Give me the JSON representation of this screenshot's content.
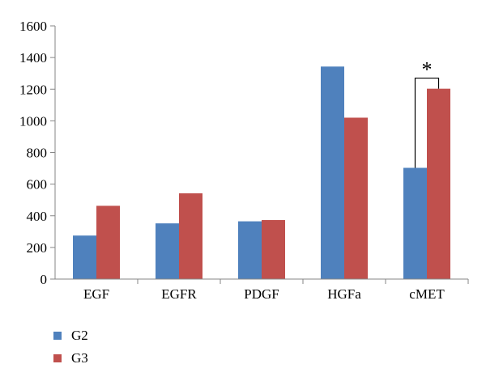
{
  "chart_data": {
    "type": "bar",
    "categories": [
      "EGF",
      "EGFR",
      "PDGF",
      "HGFa",
      "cMET"
    ],
    "series": [
      {
        "name": "G2",
        "color": "#4f81bd",
        "values": [
          275,
          352,
          365,
          1343,
          703
        ]
      },
      {
        "name": "G3",
        "color": "#c0504d",
        "values": [
          463,
          542,
          373,
          1020,
          1203
        ]
      }
    ],
    "ylim": [
      0,
      1600
    ],
    "yticks": [
      0,
      200,
      400,
      600,
      800,
      1000,
      1200,
      1400,
      1600
    ],
    "grid": false,
    "legend_position": "bottom-left",
    "annotation": {
      "text": "*",
      "category": "cMET",
      "bracket": true
    }
  }
}
